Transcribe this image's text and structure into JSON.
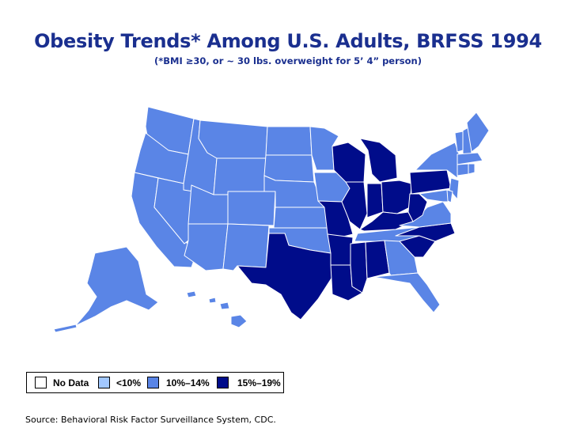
{
  "title": "Obesity Trends* Among U.S. Adults, BRFSS 1994",
  "subtitle": "(*BMI ≥30, or ~ 30 lbs. overweight for 5’ 4” person)",
  "source": "Source: Behavioral Risk Factor Surveillance System, CDC.",
  "legend": [
    {
      "label": "No Data",
      "color": "#ffffff"
    },
    {
      "label": "<10%",
      "color": "#a2c8ff"
    },
    {
      "label": "10%–14%",
      "color": "#5a85e6"
    },
    {
      "label": "15%–19%",
      "color": "#000c8a"
    }
  ],
  "colors": {
    "no_data": "#ffffff",
    "lt10": "#a2c8ff",
    "c10_14": "#5a85e6",
    "c15_19": "#000c8a",
    "title": "#1a2f8f"
  },
  "state_categories": {
    "WA": "10%–14%",
    "OR": "10%–14%",
    "CA": "10%–14%",
    "NV": "10%–14%",
    "ID": "10%–14%",
    "MT": "10%–14%",
    "WY": "10%–14%",
    "UT": "10%–14%",
    "AZ": "10%–14%",
    "CO": "10%–14%",
    "NM": "10%–14%",
    "ND": "10%–14%",
    "SD": "10%–14%",
    "NE": "10%–14%",
    "KS": "10%–14%",
    "OK": "10%–14%",
    "MN": "10%–14%",
    "IA": "10%–14%",
    "TN": "10%–14%",
    "GA": "10%–14%",
    "FL": "10%–14%",
    "VA": "10%–14%",
    "NY": "10%–14%",
    "NJ": "10%–14%",
    "VT": "10%–14%",
    "NH": "10%–14%",
    "ME": "10%–14%",
    "MA": "10%–14%",
    "CT": "10%–14%",
    "RI": "10%–14%",
    "DE": "10%–14%",
    "MD": "10%–14%",
    "AK": "10%–14%",
    "HI": "10%–14%",
    "TX": "15%–19%",
    "LA": "15%–19%",
    "AR": "15%–19%",
    "MO": "15%–19%",
    "MS": "15%–19%",
    "AL": "15%–19%",
    "IL": "15%–19%",
    "IN": "15%–19%",
    "OH": "15%–19%",
    "MI": "15%–19%",
    "WI": "15%–19%",
    "KY": "15%–19%",
    "WV": "15%–19%",
    "PA": "15%–19%",
    "NC": "15%–19%",
    "SC": "15%–19%"
  }
}
